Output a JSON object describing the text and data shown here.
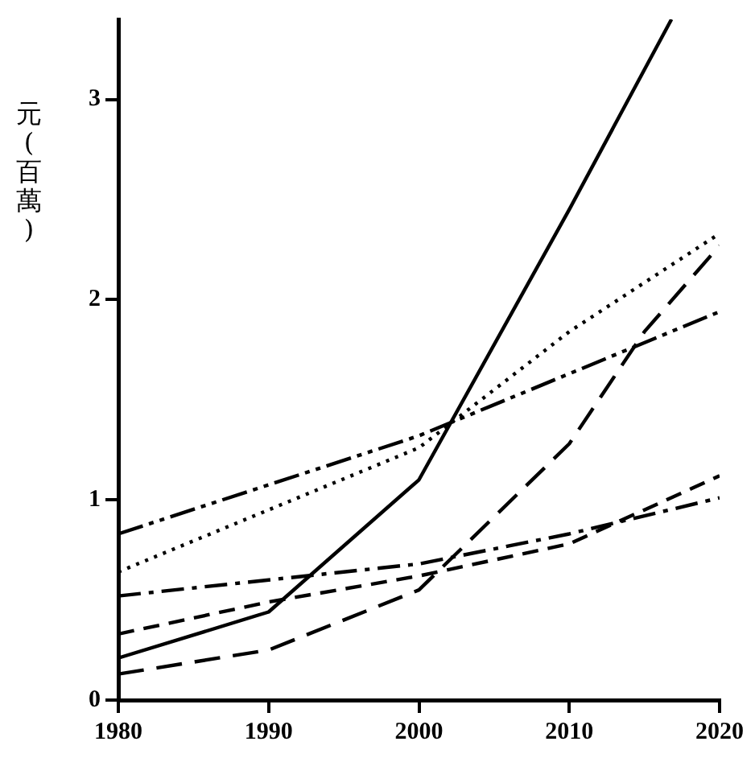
{
  "chart_data": {
    "type": "line",
    "ylabel": "元(百萬)",
    "xlim": [
      1980,
      2020
    ],
    "xticks": [
      1980,
      1990,
      2000,
      2010,
      2020
    ],
    "ylim": [
      0,
      3.4
    ],
    "yticks": [
      0,
      1,
      2,
      3
    ],
    "grid": false,
    "legend": false,
    "marker": "none",
    "series": [
      {
        "color": "#000000",
        "line_style": "solid",
        "x": [
          1980,
          1990,
          2000,
          2010,
          2016.8
        ],
        "values": [
          0.21,
          0.44,
          1.1,
          2.45,
          3.4
        ]
      },
      {
        "color": "#000000",
        "line_style": "dotted",
        "x": [
          1980,
          2000,
          2010,
          2020
        ],
        "values": [
          0.64,
          1.26,
          1.84,
          2.33
        ]
      },
      {
        "color": "#000000",
        "line_style": "dashdotdot",
        "x": [
          1980,
          2000,
          2010,
          2020
        ],
        "values": [
          0.83,
          1.32,
          1.63,
          1.94
        ]
      },
      {
        "color": "#000000",
        "line_style": "dashdot",
        "x": [
          1980,
          1990,
          2000,
          2010,
          2020
        ],
        "values": [
          0.52,
          0.6,
          0.68,
          0.83,
          1.01
        ]
      },
      {
        "color": "#000000",
        "line_style": "dashed",
        "x": [
          1980,
          1990,
          2000,
          2010,
          2020
        ],
        "values": [
          0.33,
          0.49,
          0.62,
          0.78,
          1.12
        ]
      },
      {
        "color": "#000000",
        "line_style": "longdashed",
        "x": [
          1980,
          1990,
          2000,
          2010,
          2015,
          2020
        ],
        "values": [
          0.13,
          0.25,
          0.55,
          1.28,
          1.84,
          2.27
        ]
      }
    ]
  }
}
